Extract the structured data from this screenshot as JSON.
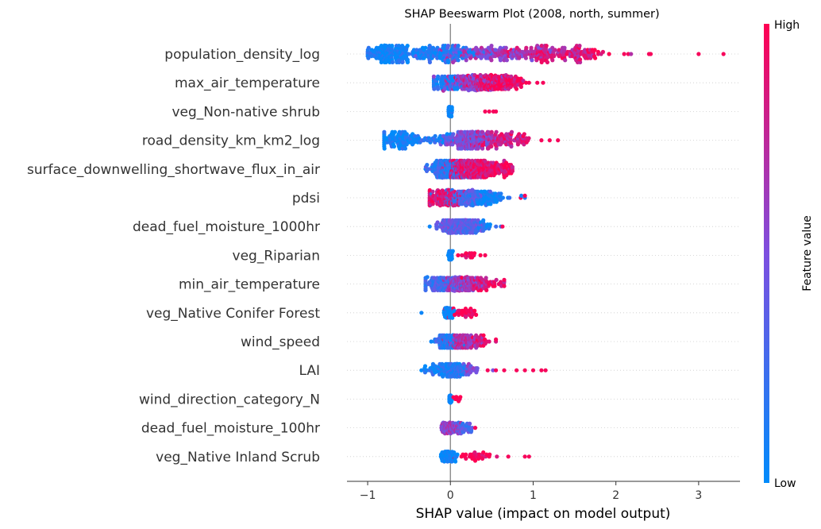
{
  "chart_data": {
    "type": "scatter",
    "subtype": "beeswarm",
    "title": "SHAP Beeswarm Plot (2008, north, summer)",
    "xlabel": "SHAP value (impact on model output)",
    "xlim": [
      -1.25,
      3.5
    ],
    "xticks": [
      -1,
      0,
      1,
      2,
      3
    ],
    "zero_line": true,
    "colorbar": {
      "label": "Feature value",
      "high_label": "High",
      "low_label": "Low",
      "high_color": "#ff0052",
      "mid_color": "#7d4fe0",
      "low_color": "#008bfb"
    },
    "features": [
      {
        "name": "population_density_log",
        "min": -1.0,
        "max": 3.3,
        "spread": 0.6,
        "density": 1.0,
        "outliers": [
          2.1,
          2.15,
          2.4,
          2.42,
          3.0,
          3.3
        ],
        "clusters": [
          {
            "c": -0.75,
            "w": 0.15,
            "n": 110,
            "f": 0.05
          },
          {
            "c": -0.35,
            "w": 0.25,
            "n": 110,
            "f": 0.08
          },
          {
            "c": 0.05,
            "w": 0.12,
            "n": 50,
            "f": 0.2
          },
          {
            "c": 0.6,
            "w": 0.3,
            "n": 120,
            "f": 0.6
          },
          {
            "c": 1.2,
            "w": 0.3,
            "n": 140,
            "f": 0.82
          },
          {
            "c": 1.6,
            "w": 0.15,
            "n": 25,
            "f": 0.95
          }
        ]
      },
      {
        "name": "max_air_temperature",
        "min": -0.2,
        "max": 1.15,
        "spread": 0.55,
        "density": 1.0,
        "outliers": [
          0.95,
          1.05,
          1.12
        ],
        "clusters": [
          {
            "c": -0.05,
            "w": 0.1,
            "n": 60,
            "f": 0.1
          },
          {
            "c": 0.25,
            "w": 0.15,
            "n": 150,
            "f": 0.6
          },
          {
            "c": 0.5,
            "w": 0.15,
            "n": 170,
            "f": 0.88
          },
          {
            "c": 0.8,
            "w": 0.1,
            "n": 20,
            "f": 0.95
          }
        ]
      },
      {
        "name": "veg_Non-native shrub",
        "min": -0.05,
        "max": 0.55,
        "spread": 0.35,
        "density": 1.0,
        "outliers": [
          0.42,
          0.47,
          0.52,
          0.55
        ],
        "clusters": [
          {
            "c": 0.0,
            "w": 0.01,
            "n": 90,
            "f": 0.0
          }
        ]
      },
      {
        "name": "road_density_km_km2_log",
        "min": -0.8,
        "max": 1.3,
        "spread": 0.6,
        "density": 1.0,
        "outliers": [
          1.1,
          1.2,
          1.3
        ],
        "clusters": [
          {
            "c": -0.6,
            "w": 0.15,
            "n": 90,
            "f": 0.05
          },
          {
            "c": -0.15,
            "w": 0.15,
            "n": 30,
            "f": 0.15
          },
          {
            "c": 0.2,
            "w": 0.15,
            "n": 160,
            "f": 0.5
          },
          {
            "c": 0.55,
            "w": 0.18,
            "n": 100,
            "f": 0.8
          },
          {
            "c": 0.85,
            "w": 0.08,
            "n": 15,
            "f": 0.95
          }
        ]
      },
      {
        "name": "surface_downwelling_shortwave_flux_in_air",
        "min": -0.3,
        "max": 0.75,
        "spread": 0.6,
        "density": 1.0,
        "outliers": [
          -0.3
        ],
        "clusters": [
          {
            "c": -0.05,
            "w": 0.1,
            "n": 150,
            "f": 0.2
          },
          {
            "c": 0.15,
            "w": 0.1,
            "n": 200,
            "f": 0.85
          },
          {
            "c": 0.4,
            "w": 0.15,
            "n": 120,
            "f": 0.9
          },
          {
            "c": 0.65,
            "w": 0.06,
            "n": 20,
            "f": 0.95
          }
        ]
      },
      {
        "name": "pdsi",
        "min": -0.25,
        "max": 0.9,
        "spread": 0.55,
        "density": 1.0,
        "outliers": [
          0.85,
          0.9
        ],
        "clusters": [
          {
            "c": -0.08,
            "w": 0.1,
            "n": 160,
            "f": 0.9
          },
          {
            "c": 0.18,
            "w": 0.12,
            "n": 150,
            "f": 0.3
          },
          {
            "c": 0.5,
            "w": 0.15,
            "n": 60,
            "f": 0.05
          }
        ]
      },
      {
        "name": "dead_fuel_moisture_1000hr",
        "min": -0.25,
        "max": 0.63,
        "spread": 0.45,
        "density": 1.0,
        "outliers": [
          -0.25,
          0.63
        ],
        "clusters": [
          {
            "c": -0.05,
            "w": 0.08,
            "n": 40,
            "f": 0.4
          },
          {
            "c": 0.18,
            "w": 0.08,
            "n": 140,
            "f": 0.35
          },
          {
            "c": 0.4,
            "w": 0.08,
            "n": 20,
            "f": 0.1
          }
        ]
      },
      {
        "name": "veg_Riparian",
        "min": -0.05,
        "max": 0.42,
        "spread": 0.3,
        "density": 1.0,
        "outliers": [
          0.42
        ],
        "clusters": [
          {
            "c": 0.0,
            "w": 0.01,
            "n": 80,
            "f": 0.0
          },
          {
            "c": 0.25,
            "w": 0.08,
            "n": 15,
            "f": 1.0
          }
        ]
      },
      {
        "name": "min_air_temperature",
        "min": -0.3,
        "max": 0.65,
        "spread": 0.5,
        "density": 1.0,
        "outliers": [
          0.6,
          0.65
        ],
        "clusters": [
          {
            "c": -0.1,
            "w": 0.12,
            "n": 90,
            "f": 0.25
          },
          {
            "c": 0.15,
            "w": 0.1,
            "n": 140,
            "f": 0.6
          },
          {
            "c": 0.38,
            "w": 0.12,
            "n": 60,
            "f": 0.85
          }
        ]
      },
      {
        "name": "veg_Native Conifer Forest",
        "min": -0.35,
        "max": 0.35,
        "spread": 0.35,
        "density": 1.0,
        "outliers": [
          -0.35
        ],
        "clusters": [
          {
            "c": -0.02,
            "w": 0.03,
            "n": 100,
            "f": 0.0
          },
          {
            "c": 0.18,
            "w": 0.08,
            "n": 30,
            "f": 1.0
          }
        ]
      },
      {
        "name": "wind_speed",
        "min": -0.25,
        "max": 0.55,
        "spread": 0.45,
        "density": 1.0,
        "outliers": [
          0.55
        ],
        "clusters": [
          {
            "c": -0.05,
            "w": 0.06,
            "n": 100,
            "f": 0.15
          },
          {
            "c": 0.15,
            "w": 0.1,
            "n": 90,
            "f": 0.7
          },
          {
            "c": 0.35,
            "w": 0.1,
            "n": 25,
            "f": 0.9
          }
        ]
      },
      {
        "name": "LAI",
        "min": -0.35,
        "max": 1.15,
        "spread": 0.45,
        "density": 1.0,
        "outliers": [
          0.45,
          0.55,
          0.65,
          0.8,
          0.9,
          1.0,
          1.1,
          1.15
        ],
        "clusters": [
          {
            "c": -0.15,
            "w": 0.1,
            "n": 40,
            "f": 0.1
          },
          {
            "c": 0.05,
            "w": 0.06,
            "n": 140,
            "f": 0.15
          },
          {
            "c": 0.25,
            "w": 0.08,
            "n": 20,
            "f": 0.5
          }
        ]
      },
      {
        "name": "wind_direction_category_N",
        "min": -0.02,
        "max": 0.12,
        "spread": 0.25,
        "density": 1.0,
        "outliers": [],
        "clusters": [
          {
            "c": 0.0,
            "w": 0.008,
            "n": 90,
            "f": 0.0
          },
          {
            "c": 0.07,
            "w": 0.03,
            "n": 8,
            "f": 1.0
          }
        ]
      },
      {
        "name": "dead_fuel_moisture_100hr",
        "min": -0.12,
        "max": 0.3,
        "spread": 0.4,
        "density": 1.0,
        "outliers": [
          0.3
        ],
        "clusters": [
          {
            "c": 0.0,
            "w": 0.05,
            "n": 120,
            "f": 0.6
          },
          {
            "c": 0.15,
            "w": 0.06,
            "n": 40,
            "f": 0.3
          }
        ]
      },
      {
        "name": "veg_Native Inland Scrub",
        "min": -0.15,
        "max": 0.95,
        "spread": 0.35,
        "density": 1.0,
        "outliers": [
          0.7,
          0.9,
          0.95
        ],
        "clusters": [
          {
            "c": -0.02,
            "w": 0.04,
            "n": 110,
            "f": 0.02
          },
          {
            "c": 0.3,
            "w": 0.15,
            "n": 30,
            "f": 1.0
          }
        ]
      }
    ]
  }
}
